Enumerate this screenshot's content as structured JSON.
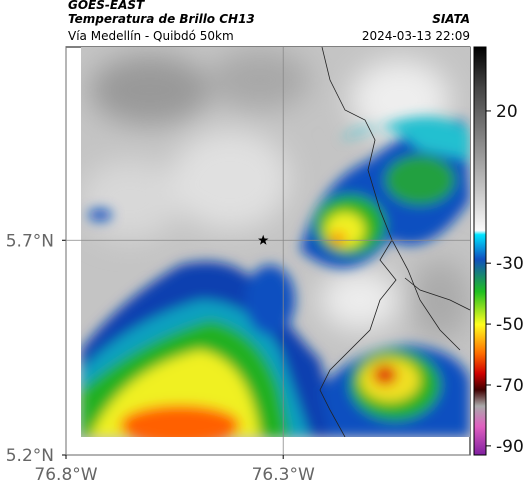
{
  "header": {
    "title": "GOES-EAST",
    "subtitle": "Temperatura de Brillo CH13",
    "source": "SIATA",
    "region": "Vía Medellín - Quibdó 50km",
    "timestamp": "2024-03-13 22:09"
  },
  "map": {
    "xlim": [
      -76.8,
      -75.87
    ],
    "ylim": [
      5.2,
      6.15
    ],
    "xticks": [
      {
        "value": -76.8,
        "label": "76.8°W"
      },
      {
        "value": -76.3,
        "label": "76.3°W"
      }
    ],
    "yticks": [
      {
        "value": 5.7,
        "label": "5.7°N"
      },
      {
        "value": 5.2,
        "label": "5.2°N"
      }
    ],
    "grid": true,
    "marker": {
      "lon": -76.346,
      "lat": 5.7
    }
  },
  "colorbar": {
    "clim": [
      -93,
      41
    ],
    "ticks": [
      20,
      -30,
      -50,
      -70,
      -90
    ]
  }
}
